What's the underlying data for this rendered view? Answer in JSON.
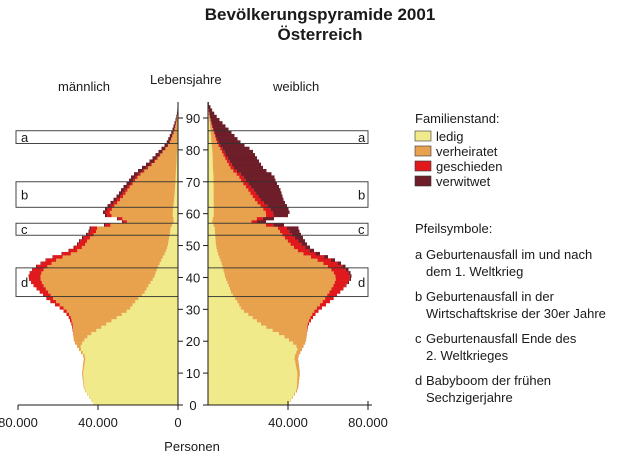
{
  "chart_data": {
    "type": "bar",
    "subtype": "population-pyramid",
    "title": "Bevölkerungspyramide 2001",
    "subtitle": "Österreich",
    "left_label": "männlich",
    "right_label": "weiblich",
    "center_label": "Lebensjahre",
    "xlabel": "Personen",
    "x_ticks": [
      "80.000",
      "40.000",
      "0",
      "40.000",
      "80.000"
    ],
    "x_tick_values": [
      80000,
      40000,
      0,
      40000,
      80000
    ],
    "xlim": [
      0,
      80000
    ],
    "ylim": [
      0,
      95
    ],
    "y_ticks": [
      0,
      10,
      20,
      30,
      40,
      50,
      60,
      70,
      80,
      90
    ],
    "legend_title": "Familienstand:",
    "series": [
      {
        "name": "ledig",
        "color": "#f0ea8a"
      },
      {
        "name": "verheiratet",
        "color": "#e8a24e"
      },
      {
        "name": "geschieden",
        "color": "#e0191c"
      },
      {
        "name": "verwitwet",
        "color": "#6e1e28"
      }
    ],
    "male_total_anchors": [
      [
        0,
        42000
      ],
      [
        5,
        47000
      ],
      [
        10,
        48000
      ],
      [
        15,
        47000
      ],
      [
        20,
        52000
      ],
      [
        25,
        53000
      ],
      [
        28,
        55000
      ],
      [
        30,
        58000
      ],
      [
        33,
        65000
      ],
      [
        36,
        70000
      ],
      [
        38,
        73000
      ],
      [
        40,
        75000
      ],
      [
        42,
        74000
      ],
      [
        44,
        70000
      ],
      [
        46,
        65000
      ],
      [
        48,
        56000
      ],
      [
        50,
        51000
      ],
      [
        52,
        49000
      ],
      [
        54,
        45000
      ],
      [
        56,
        44000
      ],
      [
        57,
        30000
      ],
      [
        58,
        26000
      ],
      [
        59,
        35000
      ],
      [
        60,
        38000
      ],
      [
        62,
        36000
      ],
      [
        64,
        33000
      ],
      [
        66,
        30000
      ],
      [
        68,
        28000
      ],
      [
        70,
        25000
      ],
      [
        72,
        23000
      ],
      [
        74,
        19000
      ],
      [
        76,
        15000
      ],
      [
        78,
        12000
      ],
      [
        80,
        9000
      ],
      [
        82,
        6000
      ],
      [
        84,
        4500
      ],
      [
        86,
        3000
      ],
      [
        88,
        2000
      ],
      [
        90,
        1000
      ],
      [
        92,
        400
      ],
      [
        95,
        0
      ]
    ],
    "female_total_anchors": [
      [
        0,
        40000
      ],
      [
        5,
        45000
      ],
      [
        10,
        46000
      ],
      [
        15,
        45000
      ],
      [
        20,
        49000
      ],
      [
        25,
        50000
      ],
      [
        28,
        53000
      ],
      [
        30,
        56000
      ],
      [
        33,
        62000
      ],
      [
        36,
        67000
      ],
      [
        38,
        70000
      ],
      [
        40,
        72000
      ],
      [
        42,
        71000
      ],
      [
        44,
        68000
      ],
      [
        46,
        62000
      ],
      [
        48,
        54000
      ],
      [
        50,
        50000
      ],
      [
        52,
        48000
      ],
      [
        54,
        46000
      ],
      [
        56,
        45000
      ],
      [
        57,
        31000
      ],
      [
        58,
        27000
      ],
      [
        59,
        39000
      ],
      [
        60,
        41000
      ],
      [
        62,
        40000
      ],
      [
        64,
        38000
      ],
      [
        66,
        37000
      ],
      [
        68,
        36000
      ],
      [
        70,
        34000
      ],
      [
        72,
        33000
      ],
      [
        74,
        28000
      ],
      [
        76,
        26000
      ],
      [
        78,
        24000
      ],
      [
        80,
        22000
      ],
      [
        82,
        17000
      ],
      [
        84,
        14000
      ],
      [
        86,
        11000
      ],
      [
        88,
        8000
      ],
      [
        90,
        5000
      ],
      [
        92,
        2500
      ],
      [
        95,
        0
      ]
    ],
    "male_share_anchors": [
      [
        0,
        1,
        0,
        0,
        0
      ],
      [
        18,
        0.98,
        0.02,
        0,
        0
      ],
      [
        22,
        0.85,
        0.15,
        0,
        0
      ],
      [
        25,
        0.7,
        0.29,
        0.01,
        0
      ],
      [
        30,
        0.42,
        0.55,
        0.03,
        0
      ],
      [
        35,
        0.25,
        0.69,
        0.06,
        0
      ],
      [
        40,
        0.16,
        0.76,
        0.08,
        0
      ],
      [
        50,
        0.1,
        0.82,
        0.07,
        0.01
      ],
      [
        60,
        0.07,
        0.84,
        0.06,
        0.03
      ],
      [
        70,
        0.05,
        0.83,
        0.04,
        0.08
      ],
      [
        80,
        0.05,
        0.72,
        0.03,
        0.2
      ],
      [
        90,
        0.05,
        0.5,
        0.02,
        0.43
      ],
      [
        95,
        0.05,
        0.45,
        0.02,
        0.48
      ]
    ],
    "female_share_anchors": [
      [
        0,
        1,
        0,
        0,
        0
      ],
      [
        18,
        0.95,
        0.05,
        0,
        0
      ],
      [
        22,
        0.75,
        0.25,
        0,
        0
      ],
      [
        25,
        0.55,
        0.44,
        0.01,
        0
      ],
      [
        30,
        0.3,
        0.66,
        0.04,
        0
      ],
      [
        35,
        0.18,
        0.74,
        0.08,
        0
      ],
      [
        40,
        0.12,
        0.77,
        0.1,
        0.01
      ],
      [
        50,
        0.08,
        0.76,
        0.11,
        0.05
      ],
      [
        60,
        0.07,
        0.65,
        0.09,
        0.19
      ],
      [
        70,
        0.08,
        0.42,
        0.07,
        0.43
      ],
      [
        80,
        0.1,
        0.2,
        0.05,
        0.65
      ],
      [
        90,
        0.12,
        0.08,
        0.03,
        0.77
      ],
      [
        95,
        0.12,
        0.05,
        0.03,
        0.8
      ]
    ],
    "annotations": [
      {
        "letter": "a",
        "age_from": 82,
        "age_to": 86
      },
      {
        "letter": "b",
        "age_from": 62,
        "age_to": 70
      },
      {
        "letter": "c",
        "age_from": 55,
        "age_to": 57
      },
      {
        "letter": "d",
        "age_from": 34,
        "age_to": 43
      }
    ],
    "arrow_legend_title": "Pfeilsymbole:",
    "arrow_legend": [
      {
        "letter": "a",
        "lines": [
          "Geburtenausfall im und nach",
          "dem 1. Weltkrieg"
        ]
      },
      {
        "letter": "b",
        "lines": [
          "Geburtenausfall in der",
          "Wirtschaftskrise der 30er Jahre"
        ]
      },
      {
        "letter": "c",
        "lines": [
          "Geburtenausfall Ende des",
          "2. Weltkrieges"
        ]
      },
      {
        "letter": "d",
        "lines": [
          "Babyboom der frühen",
          "Sechzigerjahre"
        ]
      }
    ]
  }
}
